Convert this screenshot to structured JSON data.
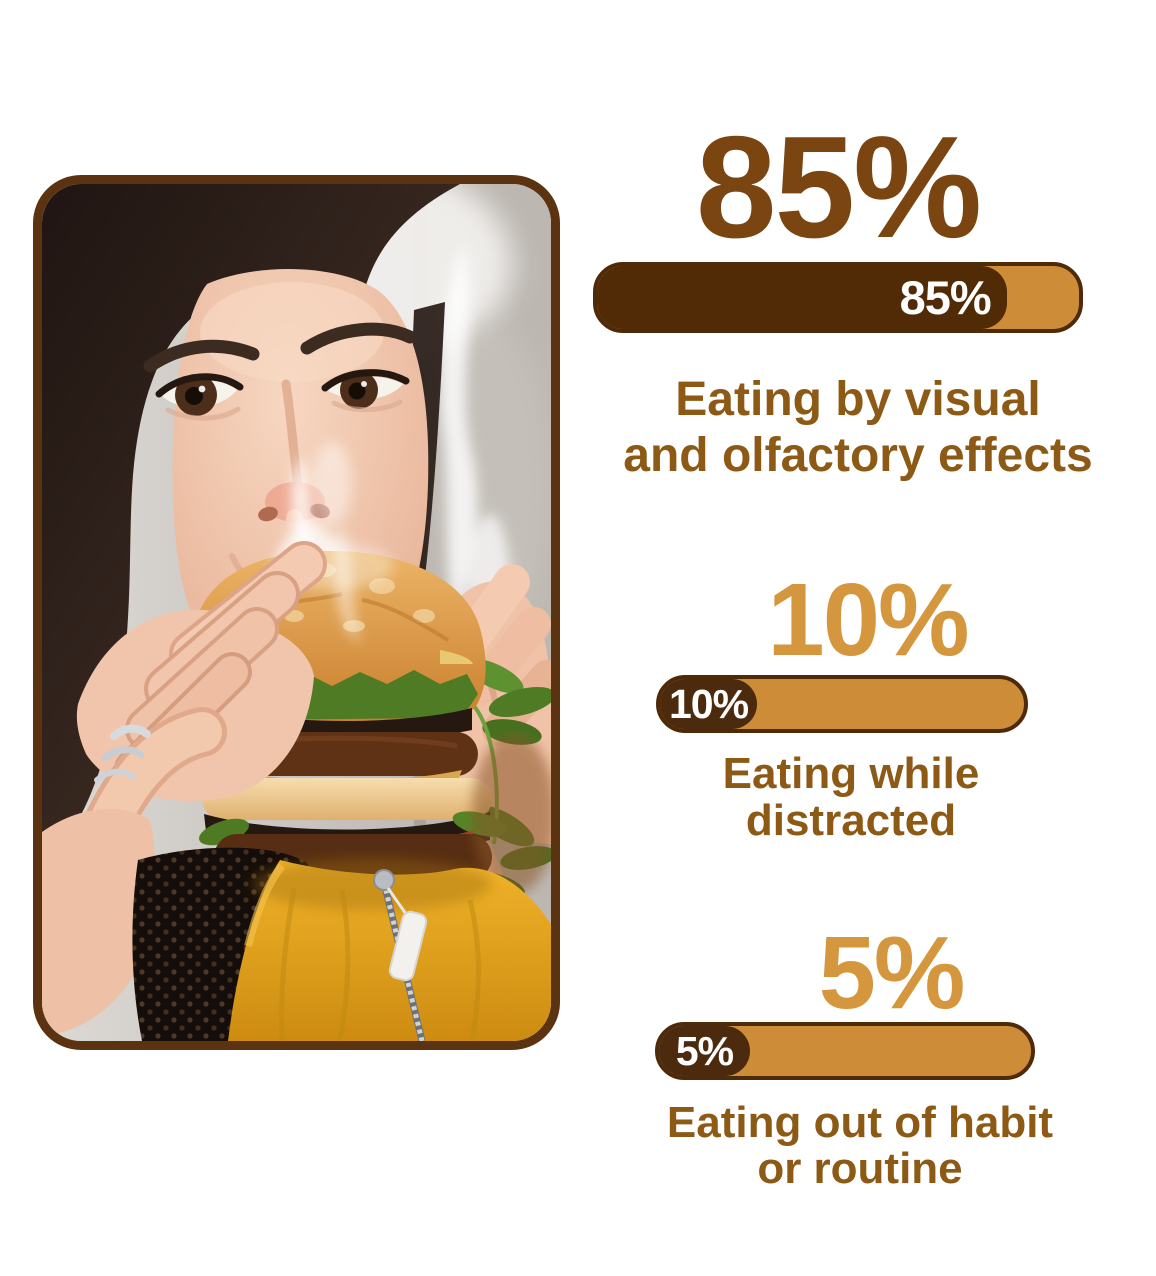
{
  "photo": {
    "alt": "Woman with dark hair biting a steaming burger, wearing a yellow jacket, silver rings on her fingers"
  },
  "stats": [
    {
      "value": "85%",
      "percent": 85,
      "bar_label": "85%",
      "caption_line1": "Eating by visual",
      "caption_line2": "and olfactory effects"
    },
    {
      "value": "10%",
      "percent": 10,
      "bar_label": "10%",
      "caption_line1": "Eating while",
      "caption_line2": "distracted"
    },
    {
      "value": "5%",
      "percent": 5,
      "bar_label": "5%",
      "caption_line1": "Eating out of habit",
      "caption_line2": "or routine"
    }
  ],
  "colors": {
    "background": "#ffffff",
    "frame_border": "#5c3310",
    "bar_track_gold": "#cd8c38",
    "bar_border": "#4f2a09",
    "bar_fill_dark": "#512b05",
    "pill_dark": "#4c2a0d",
    "number_dark": "#7a4511",
    "number_gold": "#d5973e",
    "caption_brown": "#8d5a15",
    "bar_label_white": "#ffffff"
  },
  "chart_data": {
    "type": "bar",
    "orientation": "horizontal",
    "unit": "%",
    "categories": [
      "Eating by visual and olfactory effects",
      "Eating while distracted",
      "Eating out of habit or routine"
    ],
    "values": [
      85,
      10,
      5
    ],
    "bar_labels": [
      "85%",
      "10%",
      "5%"
    ],
    "title": "",
    "xlabel": "",
    "ylabel": "",
    "xlim": [
      0,
      100
    ],
    "grid": false,
    "legend": false
  }
}
